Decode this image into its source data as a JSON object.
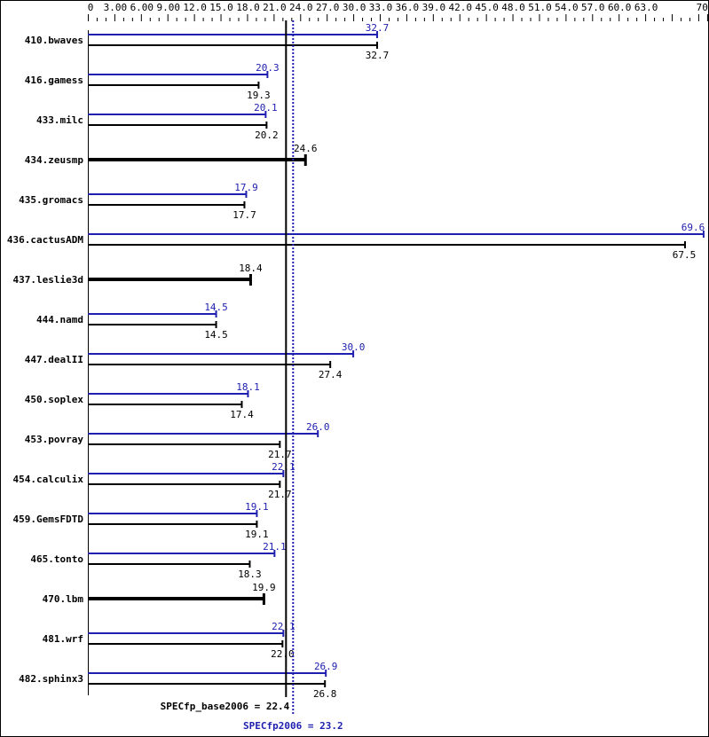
{
  "chart_data": {
    "type": "bar",
    "orientation": "horizontal",
    "xlim": [
      0,
      70
    ],
    "x_tick_labels": [
      "0",
      "3.00",
      "6.00",
      "9.00",
      "12.0",
      "15.0",
      "18.0",
      "21.0",
      "24.0",
      "27.0",
      "30.0",
      "33.0",
      "36.0",
      "39.0",
      "42.0",
      "45.0",
      "48.0",
      "51.0",
      "54.0",
      "57.0",
      "60.0",
      "63.0",
      "70.0"
    ],
    "x_tick_values": [
      0,
      3,
      6,
      9,
      12,
      15,
      18,
      21,
      24,
      27,
      30,
      33,
      36,
      39,
      42,
      45,
      48,
      51,
      54,
      57,
      60,
      63,
      70
    ],
    "minor_tick_step": 1,
    "categories": [
      "410.bwaves",
      "416.gamess",
      "433.milc",
      "434.zeusmp",
      "435.gromacs",
      "436.cactusADM",
      "437.leslie3d",
      "444.namd",
      "447.dealII",
      "450.soplex",
      "453.povray",
      "454.calculix",
      "459.GemsFDTD",
      "465.tonto",
      "470.lbm",
      "481.wrf",
      "482.sphinx3"
    ],
    "series": [
      {
        "key": "peak",
        "color": "#2020b0",
        "values": [
          32.7,
          20.3,
          20.1,
          null,
          17.9,
          69.6,
          null,
          14.5,
          30.0,
          18.1,
          26.0,
          22.1,
          19.1,
          21.1,
          null,
          22.1,
          26.9
        ]
      },
      {
        "key": "base",
        "color": "#000000",
        "values": [
          32.7,
          19.3,
          20.2,
          24.6,
          17.7,
          67.5,
          18.4,
          14.5,
          27.4,
          17.4,
          21.7,
          21.7,
          19.1,
          18.3,
          19.9,
          22.0,
          26.8
        ]
      }
    ],
    "reference_lines": [
      {
        "label": "SPECfp_base2006 = 22.4",
        "value": 22.4,
        "color": "#000000",
        "style": "solid"
      },
      {
        "label": "SPECfp2006 = 23.2",
        "value": 23.2,
        "color": "#2020b0",
        "style": "dotted"
      }
    ]
  }
}
